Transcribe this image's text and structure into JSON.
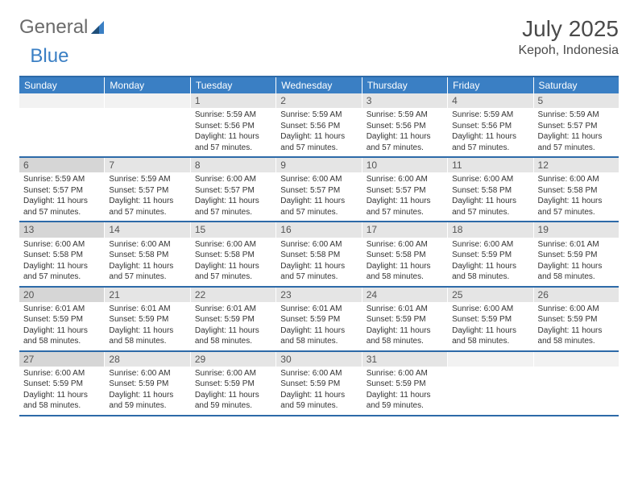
{
  "logo": {
    "part1": "General",
    "part2": "Blue"
  },
  "title": "July 2025",
  "location": "Kepoh, Indonesia",
  "day_headers": [
    "Sunday",
    "Monday",
    "Tuesday",
    "Wednesday",
    "Thursday",
    "Friday",
    "Saturday"
  ],
  "colors": {
    "header_bg": "#3a7fc4",
    "border": "#2d6aa8",
    "daynum_bg": "#e5e5e5",
    "sunday_bg": "#d6d6d6"
  },
  "weeks": [
    [
      {
        "empty": true
      },
      {
        "empty": true
      },
      {
        "day": "1",
        "sunrise": "Sunrise: 5:59 AM",
        "sunset": "Sunset: 5:56 PM",
        "daylight": "Daylight: 11 hours and 57 minutes."
      },
      {
        "day": "2",
        "sunrise": "Sunrise: 5:59 AM",
        "sunset": "Sunset: 5:56 PM",
        "daylight": "Daylight: 11 hours and 57 minutes."
      },
      {
        "day": "3",
        "sunrise": "Sunrise: 5:59 AM",
        "sunset": "Sunset: 5:56 PM",
        "daylight": "Daylight: 11 hours and 57 minutes."
      },
      {
        "day": "4",
        "sunrise": "Sunrise: 5:59 AM",
        "sunset": "Sunset: 5:56 PM",
        "daylight": "Daylight: 11 hours and 57 minutes."
      },
      {
        "day": "5",
        "sunrise": "Sunrise: 5:59 AM",
        "sunset": "Sunset: 5:57 PM",
        "daylight": "Daylight: 11 hours and 57 minutes."
      }
    ],
    [
      {
        "day": "6",
        "sunrise": "Sunrise: 5:59 AM",
        "sunset": "Sunset: 5:57 PM",
        "daylight": "Daylight: 11 hours and 57 minutes."
      },
      {
        "day": "7",
        "sunrise": "Sunrise: 5:59 AM",
        "sunset": "Sunset: 5:57 PM",
        "daylight": "Daylight: 11 hours and 57 minutes."
      },
      {
        "day": "8",
        "sunrise": "Sunrise: 6:00 AM",
        "sunset": "Sunset: 5:57 PM",
        "daylight": "Daylight: 11 hours and 57 minutes."
      },
      {
        "day": "9",
        "sunrise": "Sunrise: 6:00 AM",
        "sunset": "Sunset: 5:57 PM",
        "daylight": "Daylight: 11 hours and 57 minutes."
      },
      {
        "day": "10",
        "sunrise": "Sunrise: 6:00 AM",
        "sunset": "Sunset: 5:57 PM",
        "daylight": "Daylight: 11 hours and 57 minutes."
      },
      {
        "day": "11",
        "sunrise": "Sunrise: 6:00 AM",
        "sunset": "Sunset: 5:58 PM",
        "daylight": "Daylight: 11 hours and 57 minutes."
      },
      {
        "day": "12",
        "sunrise": "Sunrise: 6:00 AM",
        "sunset": "Sunset: 5:58 PM",
        "daylight": "Daylight: 11 hours and 57 minutes."
      }
    ],
    [
      {
        "day": "13",
        "sunrise": "Sunrise: 6:00 AM",
        "sunset": "Sunset: 5:58 PM",
        "daylight": "Daylight: 11 hours and 57 minutes."
      },
      {
        "day": "14",
        "sunrise": "Sunrise: 6:00 AM",
        "sunset": "Sunset: 5:58 PM",
        "daylight": "Daylight: 11 hours and 57 minutes."
      },
      {
        "day": "15",
        "sunrise": "Sunrise: 6:00 AM",
        "sunset": "Sunset: 5:58 PM",
        "daylight": "Daylight: 11 hours and 57 minutes."
      },
      {
        "day": "16",
        "sunrise": "Sunrise: 6:00 AM",
        "sunset": "Sunset: 5:58 PM",
        "daylight": "Daylight: 11 hours and 57 minutes."
      },
      {
        "day": "17",
        "sunrise": "Sunrise: 6:00 AM",
        "sunset": "Sunset: 5:58 PM",
        "daylight": "Daylight: 11 hours and 58 minutes."
      },
      {
        "day": "18",
        "sunrise": "Sunrise: 6:00 AM",
        "sunset": "Sunset: 5:59 PM",
        "daylight": "Daylight: 11 hours and 58 minutes."
      },
      {
        "day": "19",
        "sunrise": "Sunrise: 6:01 AM",
        "sunset": "Sunset: 5:59 PM",
        "daylight": "Daylight: 11 hours and 58 minutes."
      }
    ],
    [
      {
        "day": "20",
        "sunrise": "Sunrise: 6:01 AM",
        "sunset": "Sunset: 5:59 PM",
        "daylight": "Daylight: 11 hours and 58 minutes."
      },
      {
        "day": "21",
        "sunrise": "Sunrise: 6:01 AM",
        "sunset": "Sunset: 5:59 PM",
        "daylight": "Daylight: 11 hours and 58 minutes."
      },
      {
        "day": "22",
        "sunrise": "Sunrise: 6:01 AM",
        "sunset": "Sunset: 5:59 PM",
        "daylight": "Daylight: 11 hours and 58 minutes."
      },
      {
        "day": "23",
        "sunrise": "Sunrise: 6:01 AM",
        "sunset": "Sunset: 5:59 PM",
        "daylight": "Daylight: 11 hours and 58 minutes."
      },
      {
        "day": "24",
        "sunrise": "Sunrise: 6:01 AM",
        "sunset": "Sunset: 5:59 PM",
        "daylight": "Daylight: 11 hours and 58 minutes."
      },
      {
        "day": "25",
        "sunrise": "Sunrise: 6:00 AM",
        "sunset": "Sunset: 5:59 PM",
        "daylight": "Daylight: 11 hours and 58 minutes."
      },
      {
        "day": "26",
        "sunrise": "Sunrise: 6:00 AM",
        "sunset": "Sunset: 5:59 PM",
        "daylight": "Daylight: 11 hours and 58 minutes."
      }
    ],
    [
      {
        "day": "27",
        "sunrise": "Sunrise: 6:00 AM",
        "sunset": "Sunset: 5:59 PM",
        "daylight": "Daylight: 11 hours and 58 minutes."
      },
      {
        "day": "28",
        "sunrise": "Sunrise: 6:00 AM",
        "sunset": "Sunset: 5:59 PM",
        "daylight": "Daylight: 11 hours and 59 minutes."
      },
      {
        "day": "29",
        "sunrise": "Sunrise: 6:00 AM",
        "sunset": "Sunset: 5:59 PM",
        "daylight": "Daylight: 11 hours and 59 minutes."
      },
      {
        "day": "30",
        "sunrise": "Sunrise: 6:00 AM",
        "sunset": "Sunset: 5:59 PM",
        "daylight": "Daylight: 11 hours and 59 minutes."
      },
      {
        "day": "31",
        "sunrise": "Sunrise: 6:00 AM",
        "sunset": "Sunset: 5:59 PM",
        "daylight": "Daylight: 11 hours and 59 minutes."
      },
      {
        "empty": true
      },
      {
        "empty": true
      }
    ]
  ]
}
